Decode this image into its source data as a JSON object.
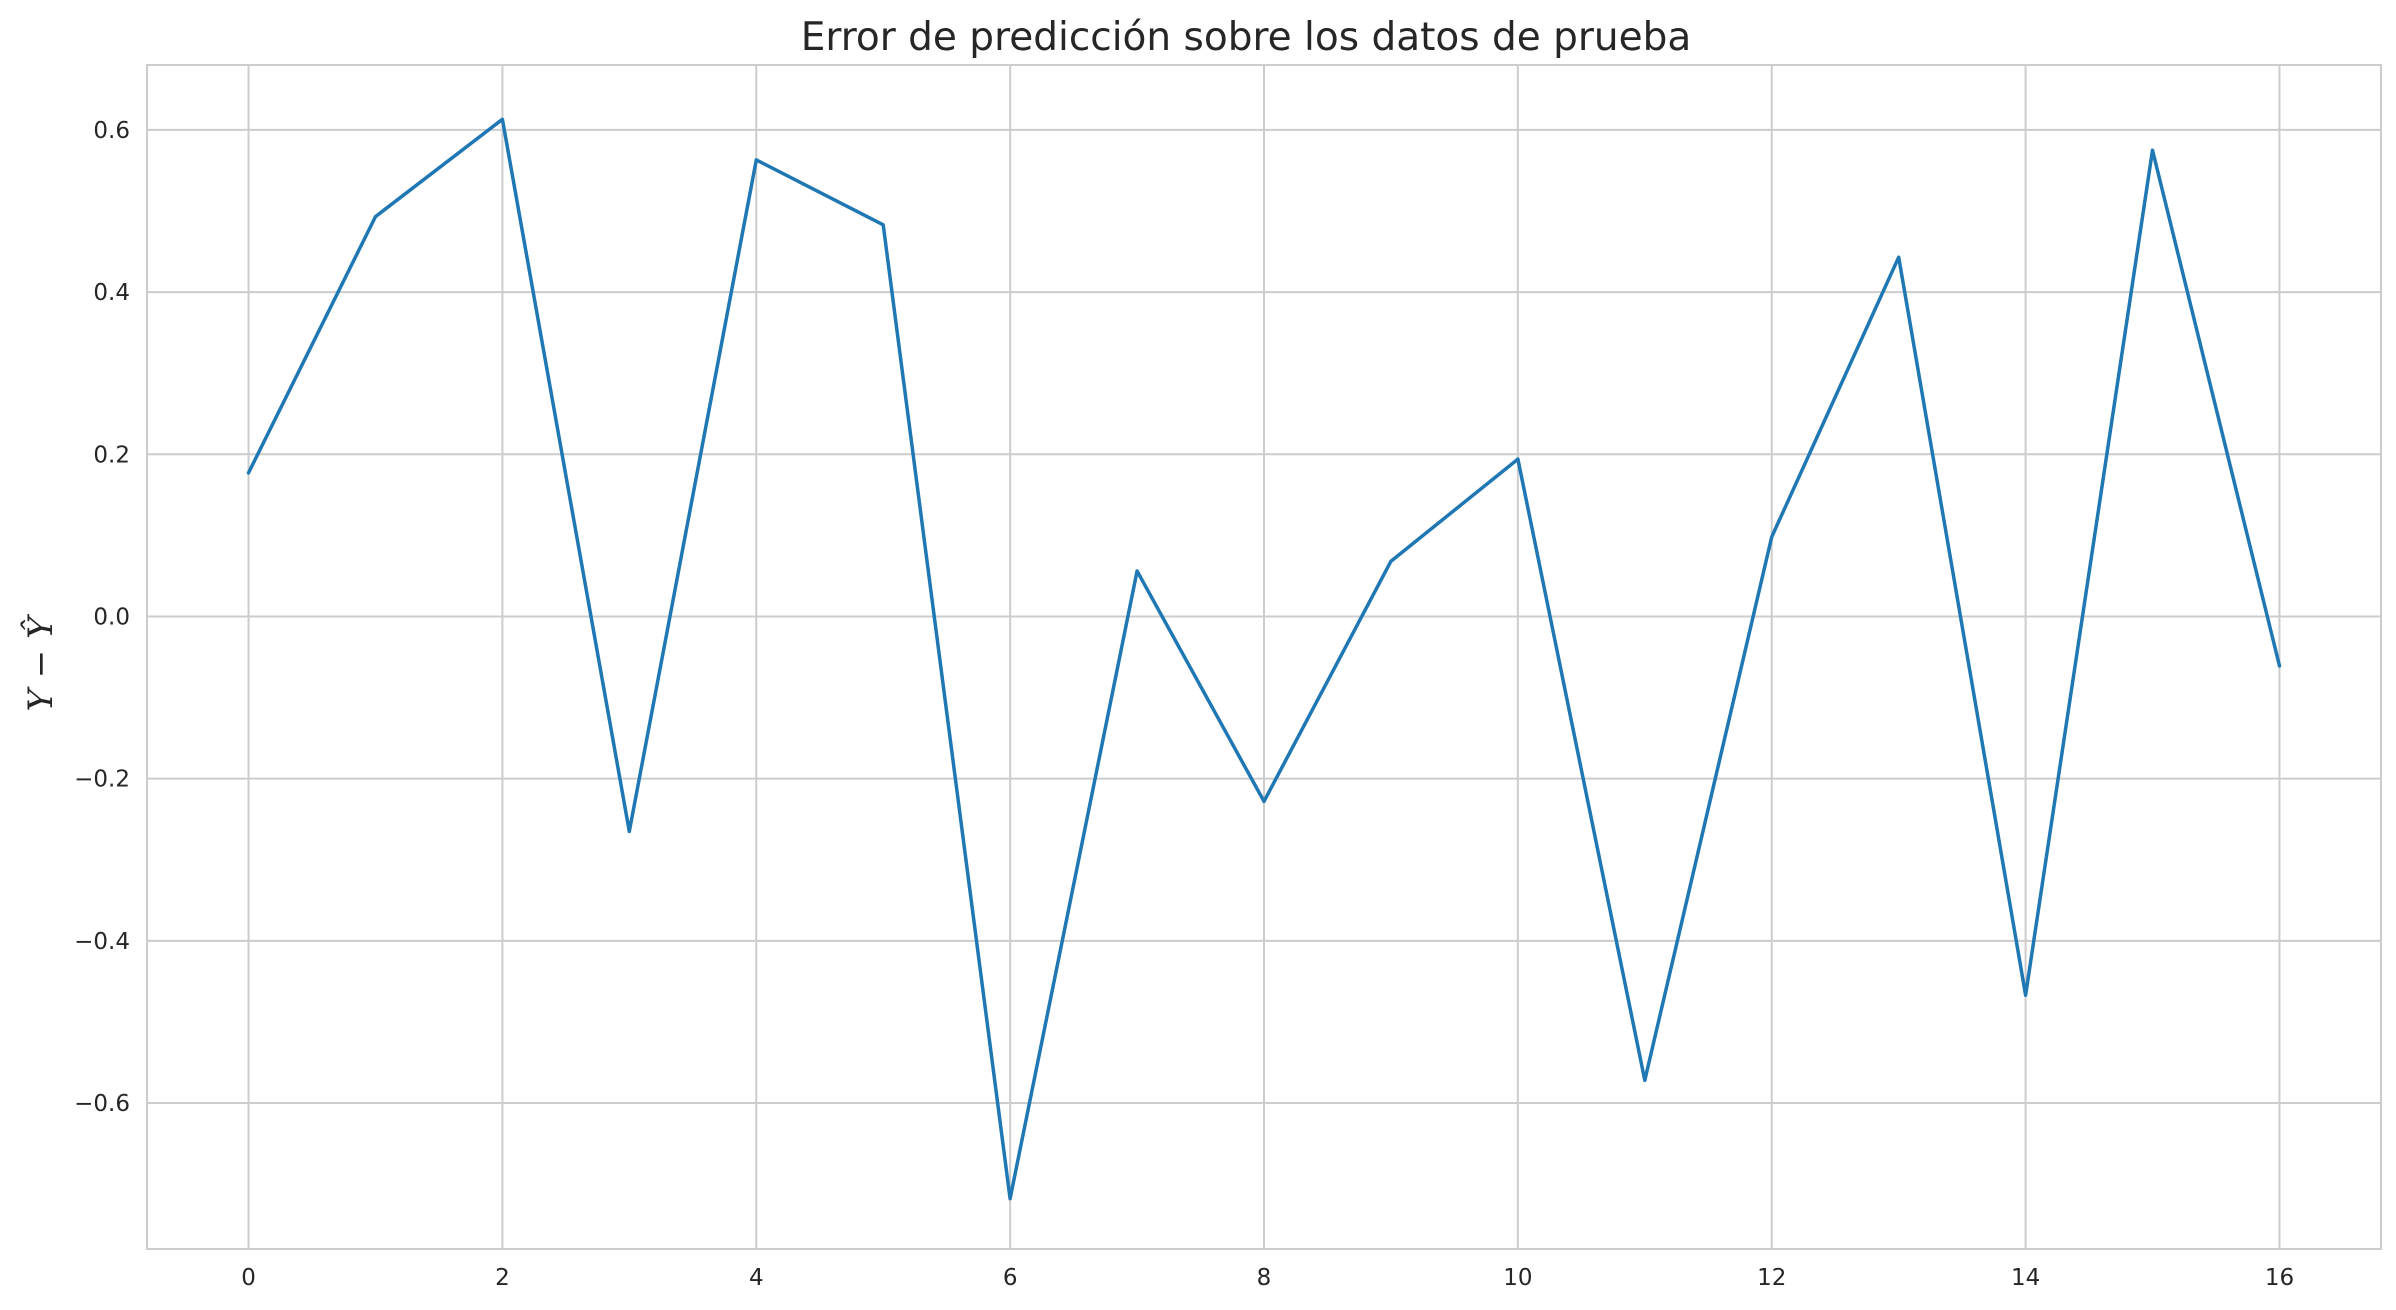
{
  "chart_data": {
    "type": "line",
    "title": "Error de predicción sobre los datos de prueba",
    "xlabel": "",
    "ylabel": "Y − Ŷ",
    "grid": true,
    "xlim": [
      -0.8,
      16.8
    ],
    "ylim": [
      -0.78,
      0.68
    ],
    "xticks": [
      0,
      2,
      4,
      6,
      8,
      10,
      12,
      14,
      16
    ],
    "xtick_labels": [
      "0",
      "2",
      "4",
      "6",
      "8",
      "10",
      "12",
      "14",
      "16"
    ],
    "yticks": [
      -0.6,
      -0.4,
      -0.2,
      0.0,
      0.2,
      0.4,
      0.6
    ],
    "ytick_labels": [
      "−0.6",
      "−0.4",
      "−0.2",
      "0.0",
      "0.2",
      "0.4",
      "0.6"
    ],
    "series": [
      {
        "color": "#1f77b4",
        "x": [
          0,
          1,
          2,
          3,
          4,
          5,
          6,
          7,
          8,
          9,
          10,
          11,
          12,
          13,
          14,
          15,
          16
        ],
        "values": [
          0.177,
          0.493,
          0.613,
          -0.265,
          0.563,
          0.483,
          -0.718,
          0.056,
          -0.228,
          0.068,
          0.194,
          -0.572,
          0.098,
          0.443,
          -0.467,
          0.575,
          -0.061
        ]
      }
    ]
  }
}
